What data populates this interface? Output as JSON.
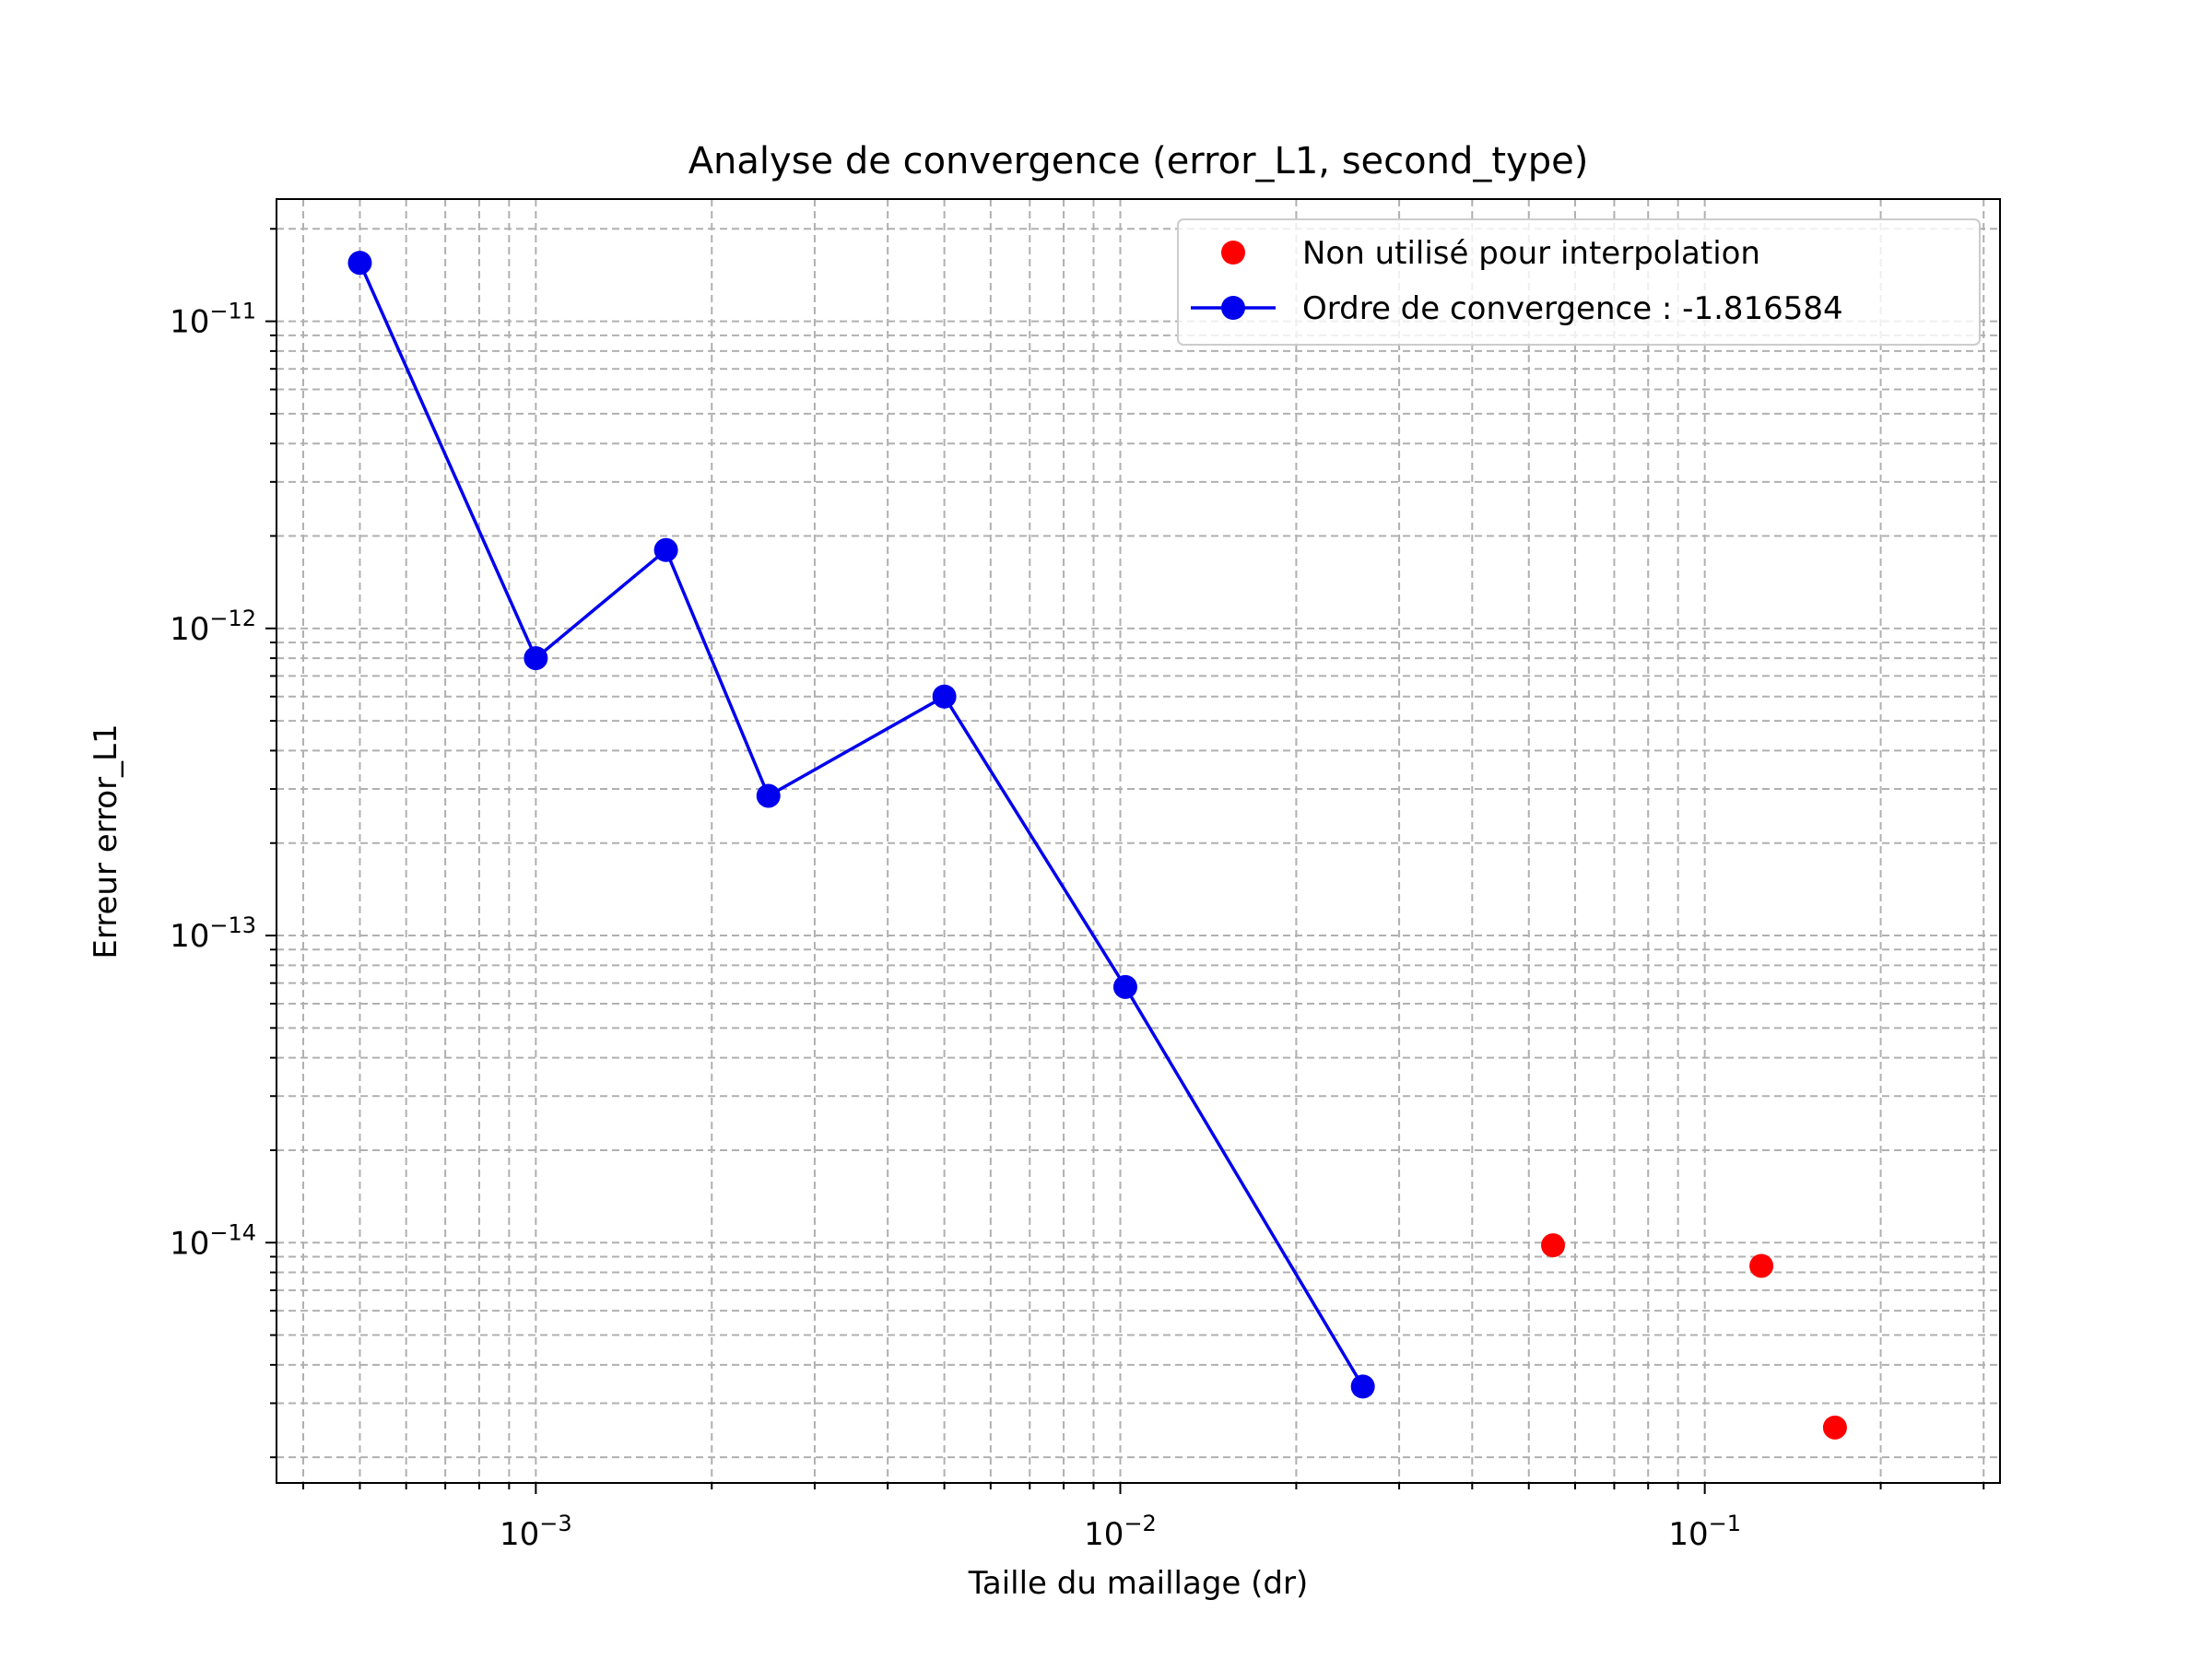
{
  "chart_data": {
    "type": "scatter",
    "title": "Analyse de convergence (error_L1, second_type)",
    "xlabel": "Taille du maillage (dr)",
    "ylabel": "Erreur error_L1",
    "xscale": "log",
    "yscale": "log",
    "xlim": [
      0.00036,
      0.32
    ],
    "ylim": [
      1.65e-15,
      2.5e-11
    ],
    "grid": true,
    "grid_style": "dashed",
    "legend_position": "upper right",
    "x_ticks": [
      {
        "value": 0.001,
        "base": "10",
        "exp": "−3"
      },
      {
        "value": 0.01,
        "base": "10",
        "exp": "−2"
      },
      {
        "value": 0.1,
        "base": "10",
        "exp": "−1"
      }
    ],
    "y_ticks": [
      {
        "value": 1e-11,
        "base": "10",
        "exp": "−11"
      },
      {
        "value": 1e-12,
        "base": "10",
        "exp": "−12"
      },
      {
        "value": 1e-13,
        "base": "10",
        "exp": "−13"
      },
      {
        "value": 1e-14,
        "base": "10",
        "exp": "−14"
      }
    ],
    "series": [
      {
        "name": "Non utilisé pour interpolation",
        "color": "#ff0000",
        "style": "markers",
        "points": [
          {
            "x": 0.055,
            "y": 9.8e-15
          },
          {
            "x": 0.125,
            "y": 8.4e-15
          },
          {
            "x": 0.167,
            "y": 2.5e-15
          }
        ]
      },
      {
        "name": "Ordre de convergence : -1.816584",
        "color": "#0000ee",
        "style": "line+markers",
        "points": [
          {
            "x": 0.0005,
            "y": 1.55e-11
          },
          {
            "x": 0.001,
            "y": 8e-13
          },
          {
            "x": 0.00167,
            "y": 1.8e-12
          },
          {
            "x": 0.0025,
            "y": 2.85e-13
          },
          {
            "x": 0.005,
            "y": 6e-13
          },
          {
            "x": 0.0102,
            "y": 6.8e-14
          },
          {
            "x": 0.026,
            "y": 3.4e-15
          }
        ]
      }
    ]
  }
}
